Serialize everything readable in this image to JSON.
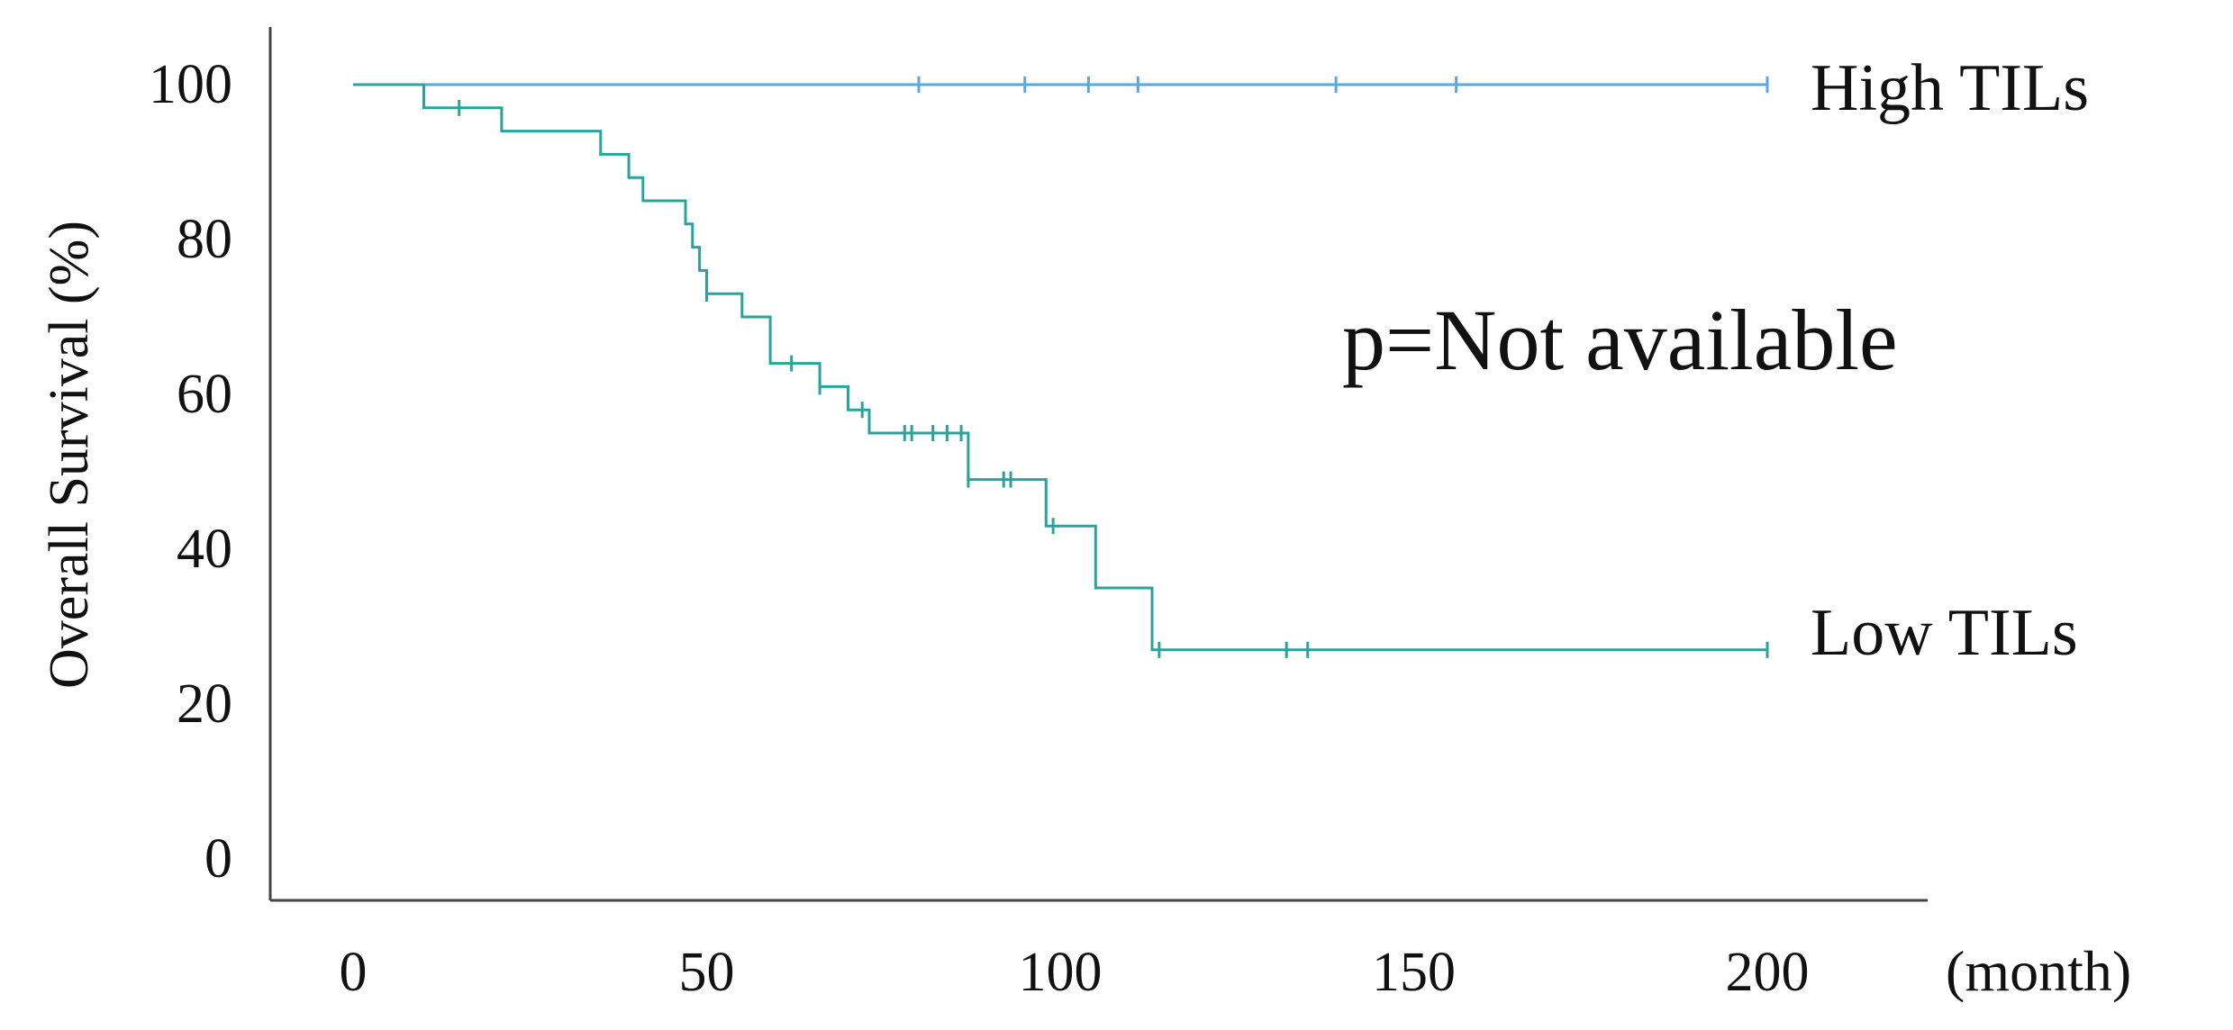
{
  "chart_data": {
    "type": "line",
    "subtype": "kaplan-meier",
    "title": "",
    "xlabel": "",
    "x_unit_label": "(month)",
    "ylabel": "Overall Survival (%)",
    "xlim": [
      0,
      220
    ],
    "ylim": [
      0,
      100
    ],
    "xticks": [
      0,
      50,
      100,
      150,
      200
    ],
    "yticks": [
      0,
      20,
      40,
      60,
      80,
      100
    ],
    "grid": false,
    "annotation": "p=Not available",
    "series": [
      {
        "name": "High TILs",
        "color": "#5aa8dd",
        "steps": [
          [
            0,
            100
          ],
          [
            200,
            100
          ]
        ],
        "censored": [
          80,
          95,
          104,
          111,
          139,
          156,
          200
        ]
      },
      {
        "name": "Low TILs",
        "color": "#2aa39b",
        "steps": [
          [
            0,
            100
          ],
          [
            10,
            97
          ],
          [
            21,
            94
          ],
          [
            35,
            91
          ],
          [
            39,
            88
          ],
          [
            41,
            85
          ],
          [
            47,
            82
          ],
          [
            48,
            79
          ],
          [
            49,
            76
          ],
          [
            50,
            73
          ],
          [
            55,
            70
          ],
          [
            59,
            64
          ],
          [
            66,
            61
          ],
          [
            70,
            58
          ],
          [
            73,
            55
          ],
          [
            87,
            49
          ],
          [
            98,
            43
          ],
          [
            105,
            35
          ],
          [
            113,
            27
          ],
          [
            200,
            27
          ]
        ],
        "censored": [
          15,
          50,
          62,
          66,
          72,
          78,
          79,
          82,
          84,
          86,
          87,
          92,
          93,
          99,
          114,
          132,
          135,
          200
        ]
      }
    ]
  }
}
